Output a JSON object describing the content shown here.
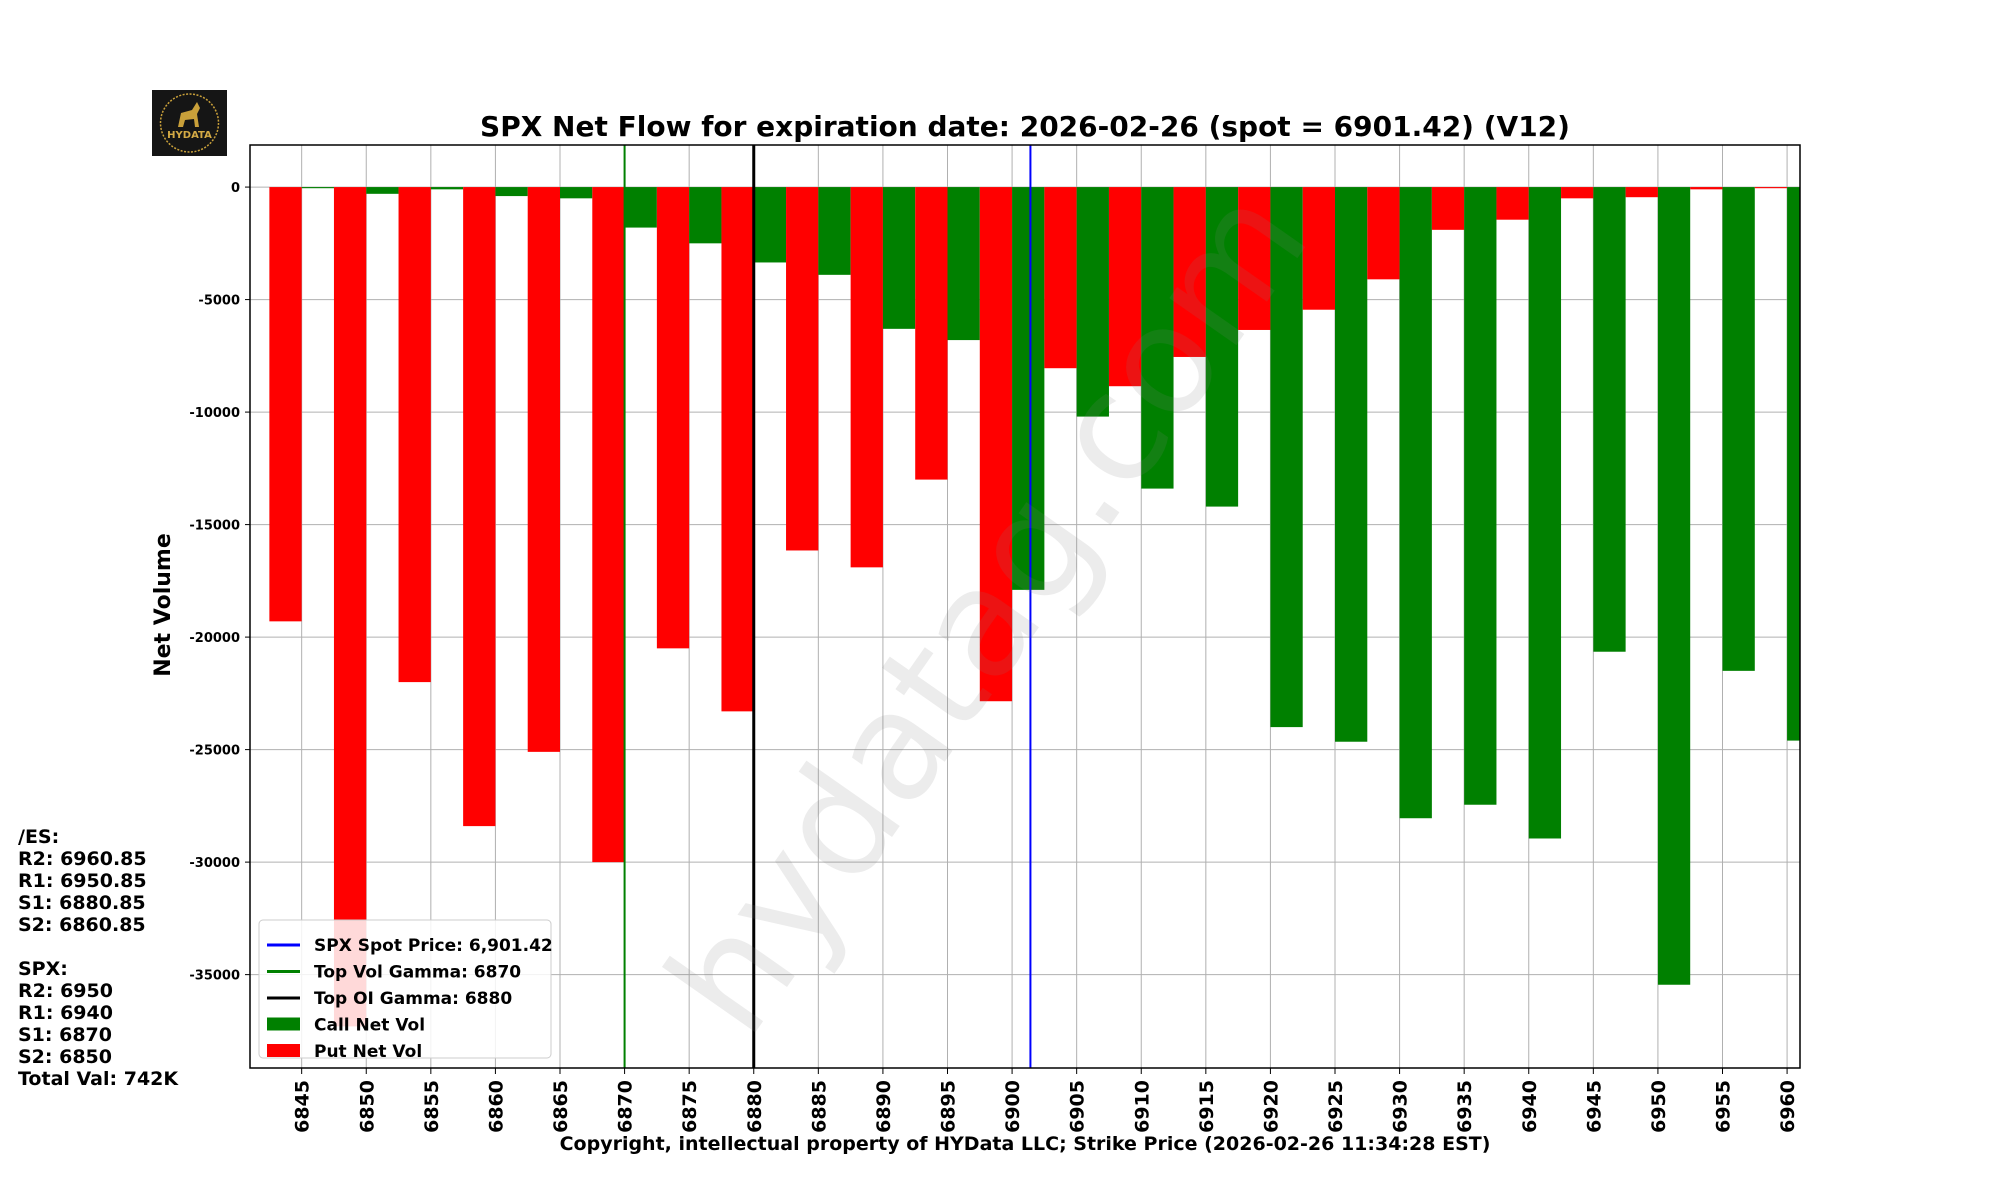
{
  "logo": {
    "text": "HYDATA"
  },
  "watermark": "hydatag.com",
  "side_panel": {
    "es_header": "/ES:",
    "es_levels": [
      "R2: 6960.85",
      "R1: 6950.85",
      "S1: 6880.85",
      "S2: 6860.85"
    ],
    "spx_header": "SPX:",
    "spx_levels": [
      "R2: 6950",
      "R1: 6940",
      "S1: 6870",
      "S2: 6850"
    ],
    "total": "Total Val: 742K"
  },
  "colors": {
    "call": "#008000",
    "put": "#ff0000",
    "spot": "#0000ff",
    "vol_gamma": "#008000",
    "oi_gamma": "#000000"
  },
  "chart_data": {
    "type": "bar",
    "title": "SPX Net Flow for expiration date: 2026-02-26 (spot = 6901.42) (V12)",
    "xlabel": "Copyright, intellectual property of HYData LLC; Strike Price (2026-02-26 11:34:28 EST)",
    "ylabel": "Net Volume",
    "xlim": [
      6841,
      6961
    ],
    "ylim": [
      -39150,
      1870
    ],
    "yticks": [
      0,
      -5000,
      -10000,
      -15000,
      -20000,
      -25000,
      -30000,
      -35000
    ],
    "grid": true,
    "legend_position": "lower-left",
    "categories": [
      6845,
      6850,
      6855,
      6860,
      6865,
      6870,
      6875,
      6880,
      6885,
      6890,
      6895,
      6900,
      6905,
      6910,
      6915,
      6920,
      6925,
      6930,
      6935,
      6940,
      6945,
      6950,
      6955,
      6960
    ],
    "series": [
      {
        "name": "Call Net Vol",
        "values": [
          -50,
          -300,
          -100,
          -400,
          -500,
          -1800,
          -2500,
          -3350,
          -3900,
          -6300,
          -6800,
          -17900,
          -10200,
          -13400,
          -14200,
          -24000,
          -24650,
          -28050,
          -27450,
          -28950,
          -20650,
          -35450,
          -21500,
          -24600
        ]
      },
      {
        "name": "Put Net Vol",
        "values": [
          -19300,
          -37300,
          -22000,
          -28400,
          -25100,
          -30000,
          -20500,
          -23300,
          -16150,
          -16900,
          -13000,
          -22850,
          -8050,
          -8850,
          -7550,
          -6350,
          -5450,
          -4100,
          -1900,
          -1450,
          -500,
          -450,
          -100,
          -50
        ]
      }
    ],
    "vlines": [
      {
        "name": "SPX Spot Price: 6,901.42",
        "x": 6901.42,
        "color": "#0000ff"
      },
      {
        "name": "Top Vol Gamma: 6870",
        "x": 6870,
        "color": "#008000"
      },
      {
        "name": "Top OI Gamma: 6880",
        "x": 6880,
        "color": "#000000"
      }
    ]
  }
}
